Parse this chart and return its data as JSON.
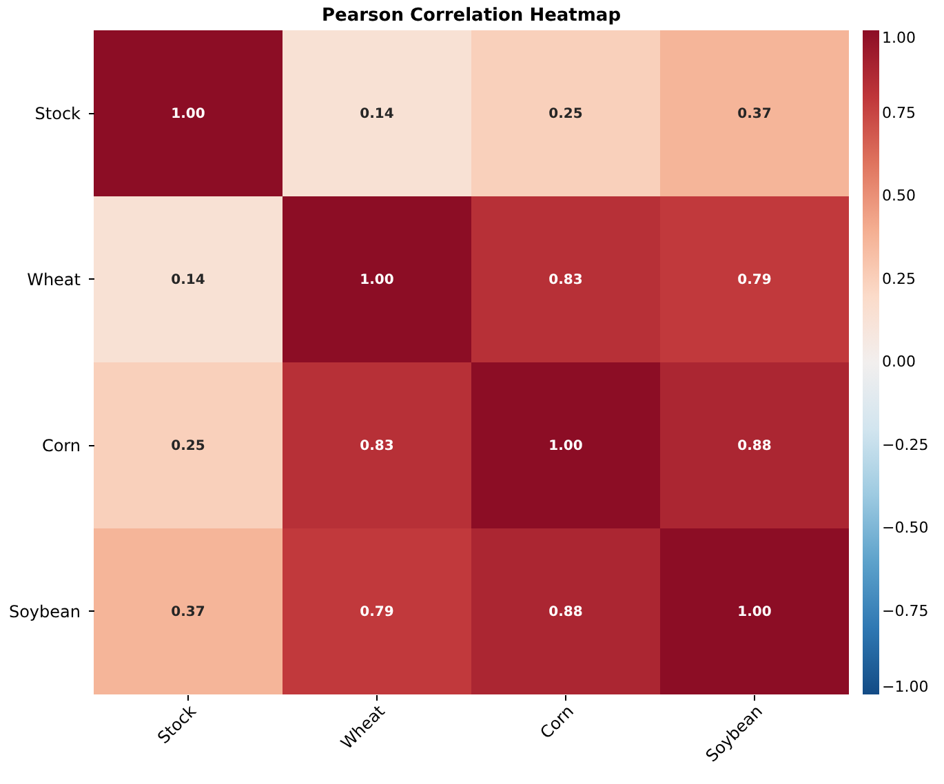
{
  "chart_data": {
    "type": "heatmap",
    "title": "Pearson Correlation Heatmap",
    "categories": [
      "Stock",
      "Wheat",
      "Corn",
      "Soybean"
    ],
    "y_categories": [
      "Stock",
      "Wheat",
      "Corn",
      "Soybean"
    ],
    "cells": [
      [
        1.0,
        0.14,
        0.25,
        0.37
      ],
      [
        0.14,
        1.0,
        0.83,
        0.79
      ],
      [
        0.25,
        0.83,
        1.0,
        0.88
      ],
      [
        0.37,
        0.79,
        0.88,
        1.0
      ]
    ],
    "cell_labels": [
      [
        "1.00",
        "0.14",
        "0.25",
        "0.37"
      ],
      [
        "0.14",
        "1.00",
        "0.83",
        "0.79"
      ],
      [
        "0.25",
        "0.83",
        "1.00",
        "0.88"
      ],
      [
        "0.37",
        "0.79",
        "0.88",
        "1.00"
      ]
    ],
    "clim": [
      -1,
      1
    ],
    "cticks": [
      {
        "value": -1,
        "label": "−1.00"
      },
      {
        "value": -0.75,
        "label": "−0.75"
      },
      {
        "value": -0.5,
        "label": "−0.50"
      },
      {
        "value": -0.25,
        "label": "−0.25"
      },
      {
        "value": 0,
        "label": "0.00"
      },
      {
        "value": 0.25,
        "label": "0.25"
      },
      {
        "value": 0.5,
        "label": "0.50"
      },
      {
        "value": 0.75,
        "label": "0.75"
      },
      {
        "value": 1,
        "label": "1.00"
      }
    ]
  }
}
